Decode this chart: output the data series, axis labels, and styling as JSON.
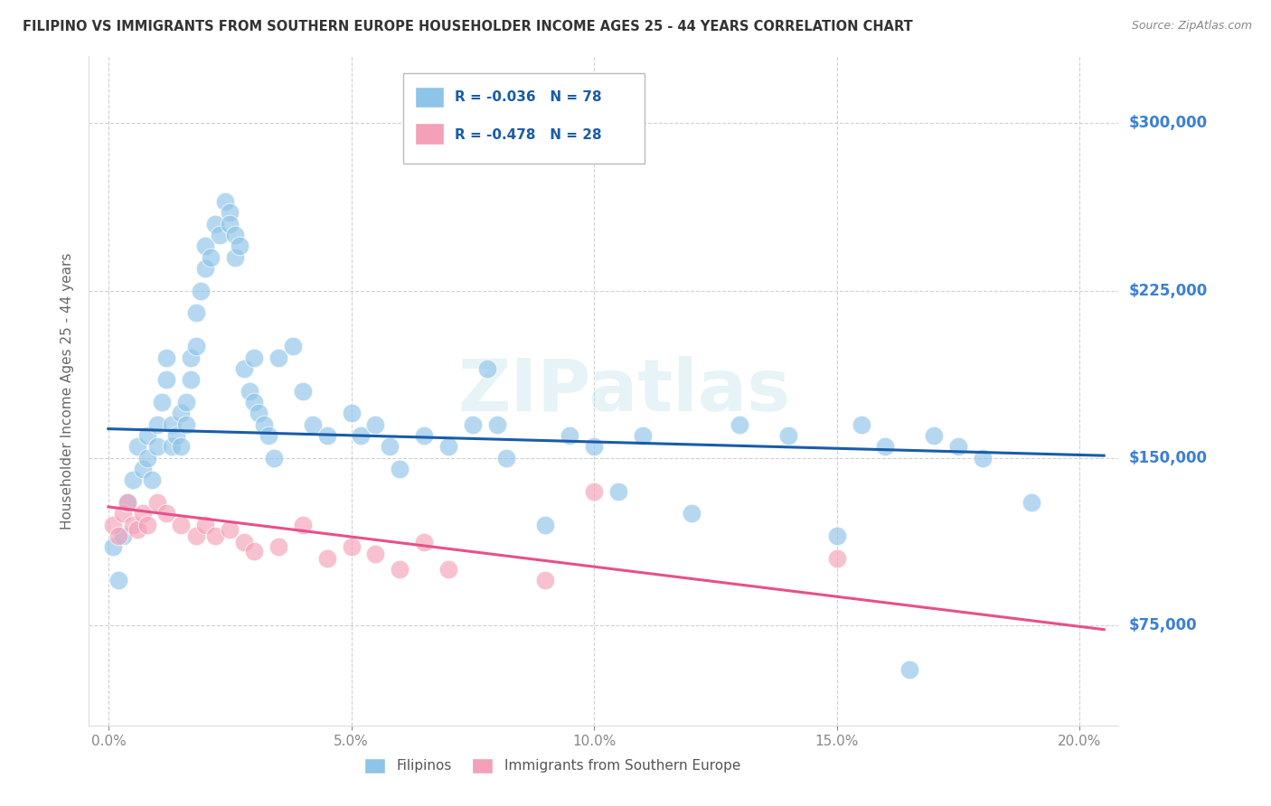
{
  "title": "FILIPINO VS IMMIGRANTS FROM SOUTHERN EUROPE HOUSEHOLDER INCOME AGES 25 - 44 YEARS CORRELATION CHART",
  "source": "Source: ZipAtlas.com",
  "ylabel": "Householder Income Ages 25 - 44 years",
  "xlabel_ticks": [
    "0.0%",
    "5.0%",
    "10.0%",
    "15.0%",
    "20.0%"
  ],
  "xlabel_vals": [
    0.0,
    0.05,
    0.1,
    0.15,
    0.2
  ],
  "ylabel_vals": [
    75000,
    150000,
    225000,
    300000
  ],
  "ylabel_labels": [
    "$75,000",
    "$150,000",
    "$225,000",
    "$300,000"
  ],
  "xlim": [
    -0.004,
    0.208
  ],
  "ylim": [
    30000,
    330000
  ],
  "watermark": "ZIPatlas",
  "legend1_label": "R = -0.036   N = 78",
  "legend2_label": "R = -0.478   N = 28",
  "legend_bottom_label1": "Filipinos",
  "legend_bottom_label2": "Immigrants from Southern Europe",
  "blue_color": "#8ec4e8",
  "pink_color": "#f4a0b8",
  "blue_line_color": "#1a5ca8",
  "pink_line_color": "#e8508a",
  "right_label_color": "#3a80d5",
  "blue_line_x": [
    0.0,
    0.205
  ],
  "blue_line_y": [
    163000,
    151000
  ],
  "pink_line_x": [
    0.0,
    0.205
  ],
  "pink_line_y": [
    128000,
    73000
  ],
  "blue_x": [
    0.001,
    0.002,
    0.003,
    0.004,
    0.005,
    0.006,
    0.007,
    0.008,
    0.008,
    0.009,
    0.01,
    0.01,
    0.011,
    0.012,
    0.012,
    0.013,
    0.013,
    0.014,
    0.015,
    0.015,
    0.016,
    0.016,
    0.017,
    0.017,
    0.018,
    0.018,
    0.019,
    0.02,
    0.02,
    0.021,
    0.022,
    0.023,
    0.024,
    0.025,
    0.025,
    0.026,
    0.026,
    0.027,
    0.028,
    0.029,
    0.03,
    0.03,
    0.031,
    0.032,
    0.033,
    0.034,
    0.035,
    0.038,
    0.04,
    0.042,
    0.045,
    0.05,
    0.052,
    0.055,
    0.058,
    0.06,
    0.065,
    0.07,
    0.075,
    0.078,
    0.08,
    0.082,
    0.09,
    0.095,
    0.1,
    0.105,
    0.11,
    0.12,
    0.13,
    0.14,
    0.15,
    0.155,
    0.16,
    0.165,
    0.17,
    0.175,
    0.18,
    0.19
  ],
  "blue_y": [
    110000,
    95000,
    115000,
    130000,
    140000,
    155000,
    145000,
    150000,
    160000,
    140000,
    155000,
    165000,
    175000,
    195000,
    185000,
    165000,
    155000,
    160000,
    170000,
    155000,
    165000,
    175000,
    185000,
    195000,
    200000,
    215000,
    225000,
    235000,
    245000,
    240000,
    255000,
    250000,
    265000,
    260000,
    255000,
    250000,
    240000,
    245000,
    190000,
    180000,
    195000,
    175000,
    170000,
    165000,
    160000,
    150000,
    195000,
    200000,
    180000,
    165000,
    160000,
    170000,
    160000,
    165000,
    155000,
    145000,
    160000,
    155000,
    165000,
    190000,
    165000,
    150000,
    120000,
    160000,
    155000,
    135000,
    160000,
    125000,
    165000,
    160000,
    115000,
    165000,
    155000,
    55000,
    160000,
    155000,
    150000,
    130000
  ],
  "pink_x": [
    0.001,
    0.002,
    0.003,
    0.004,
    0.005,
    0.006,
    0.007,
    0.008,
    0.01,
    0.012,
    0.015,
    0.018,
    0.02,
    0.022,
    0.025,
    0.028,
    0.03,
    0.035,
    0.04,
    0.045,
    0.05,
    0.055,
    0.06,
    0.065,
    0.07,
    0.09,
    0.1,
    0.15
  ],
  "pink_y": [
    120000,
    115000,
    125000,
    130000,
    120000,
    118000,
    125000,
    120000,
    130000,
    125000,
    120000,
    115000,
    120000,
    115000,
    118000,
    112000,
    108000,
    110000,
    120000,
    105000,
    110000,
    107000,
    100000,
    112000,
    100000,
    95000,
    135000,
    105000
  ]
}
